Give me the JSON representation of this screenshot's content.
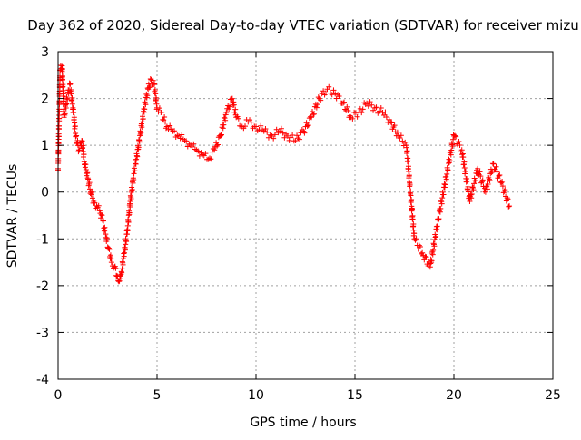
{
  "chart_data": {
    "type": "scatter",
    "title": "Day 362 of 2020, Sidereal Day-to-day VTEC variation (SDTVAR) for receiver mizu",
    "xlabel": "GPS time / hours",
    "ylabel": "SDTVAR / TECUs",
    "xlim": [
      0,
      25
    ],
    "ylim": [
      -4,
      3
    ],
    "x_ticks": [
      0,
      5,
      10,
      15,
      20,
      25
    ],
    "y_ticks": [
      -4,
      -3,
      -2,
      -1,
      0,
      1,
      2,
      3
    ],
    "x_tick_labels": [
      "0",
      "5",
      "10",
      "15",
      "20",
      "25"
    ],
    "y_tick_labels": [
      "-4",
      "-3",
      "-2",
      "-1",
      "0",
      "1",
      "2",
      "3"
    ],
    "grid": true,
    "marker": "plus",
    "series": [
      {
        "name": "SDTVAR",
        "color": "#ff0000",
        "x": [
          0.0,
          0.1,
          0.2,
          0.3,
          0.45,
          0.6,
          0.75,
          0.9,
          1.05,
          1.2,
          1.35,
          1.5,
          1.65,
          1.8,
          1.95,
          2.1,
          2.25,
          2.4,
          2.55,
          2.7,
          2.85,
          3.0,
          3.1,
          3.2,
          3.35,
          3.5,
          3.65,
          3.8,
          3.95,
          4.1,
          4.25,
          4.4,
          4.55,
          4.7,
          4.85,
          5.0,
          5.2,
          5.5,
          5.8,
          6.1,
          6.4,
          6.7,
          7.0,
          7.3,
          7.6,
          7.9,
          8.2,
          8.5,
          8.8,
          9.0,
          9.3,
          9.6,
          10.0,
          10.4,
          10.8,
          11.2,
          11.6,
          12.0,
          12.4,
          12.8,
          13.2,
          13.6,
          14.0,
          14.4,
          14.8,
          15.2,
          15.6,
          16.0,
          16.4,
          16.8,
          17.2,
          17.6,
          18.0,
          18.4,
          18.8,
          19.2,
          20.0,
          20.4,
          20.8,
          21.2,
          21.6,
          22.0,
          22.4,
          22.8
        ],
        "y": [
          0.5,
          2.6,
          2.7,
          1.6,
          2.0,
          2.3,
          1.8,
          1.2,
          0.9,
          1.1,
          0.6,
          0.3,
          0.0,
          -0.2,
          -0.3,
          -0.4,
          -0.6,
          -0.9,
          -1.2,
          -1.5,
          -1.6,
          -1.8,
          -1.9,
          -1.7,
          -1.3,
          -0.8,
          -0.2,
          0.3,
          0.7,
          1.1,
          1.5,
          1.9,
          2.2,
          2.4,
          2.3,
          1.8,
          1.7,
          1.4,
          1.3,
          1.2,
          1.1,
          1.0,
          0.9,
          0.8,
          0.7,
          0.9,
          1.2,
          1.7,
          2.0,
          1.6,
          1.4,
          1.5,
          1.4,
          1.3,
          1.2,
          1.3,
          1.2,
          1.1,
          1.3,
          1.6,
          2.0,
          2.2,
          2.1,
          1.9,
          1.6,
          1.7,
          1.9,
          1.8,
          1.7,
          1.5,
          1.2,
          1.0,
          -1.0,
          -1.3,
          -1.6,
          -0.6,
          1.2,
          0.9,
          -0.2,
          0.5,
          0.0,
          0.6,
          0.2,
          -0.3
        ]
      }
    ]
  }
}
